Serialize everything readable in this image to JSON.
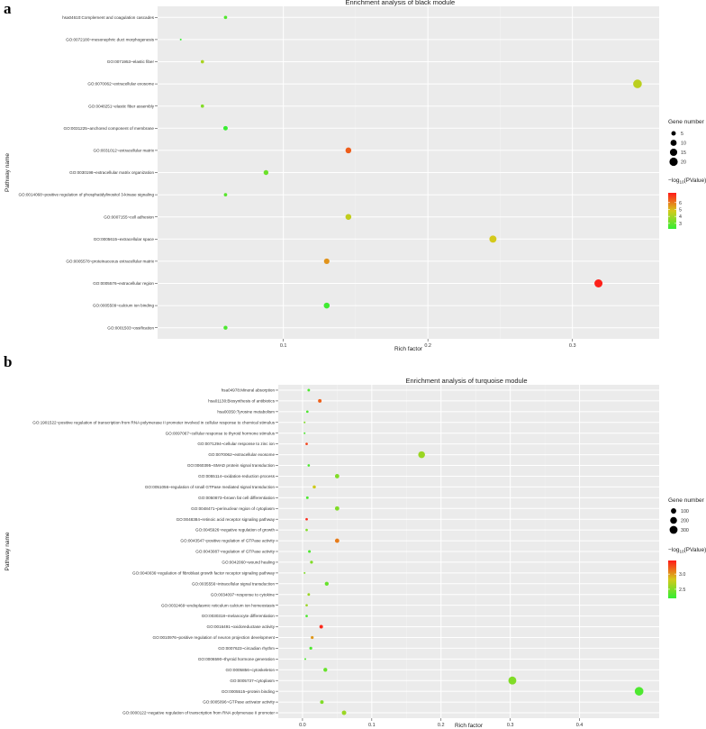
{
  "chart_data": [
    {
      "type": "scatter",
      "panel_label": "a",
      "title": "Enrichment analysis of black module",
      "xlabel": "Rich factor",
      "ylabel": "Pathway name",
      "xlim": [
        0.013,
        0.36
      ],
      "xticks": [
        0.1,
        0.2,
        0.3
      ],
      "xtick_labels": [
        "0.1",
        "0.2",
        "0.3"
      ],
      "grid": true,
      "legend_position": "right",
      "size_legend": {
        "title": "Gene number",
        "values": [
          5,
          10,
          15,
          20
        ],
        "labels": [
          "5",
          "10",
          "15",
          "20"
        ]
      },
      "color_legend": {
        "title_prefix": "−log",
        "title_sub": "10",
        "title_suffix": "(PValue)",
        "min": 2.2,
        "max": 7.4,
        "ticks": [
          3,
          4,
          5,
          6
        ],
        "tick_labels": [
          "3",
          "4",
          "5",
          "6"
        ],
        "low_color": "#33ee33",
        "high_color": "#ff1a1a"
      },
      "points": [
        {
          "label": "hsa04610:Complement and coagulation cascades",
          "x": 0.06,
          "size": 3,
          "logp": 2.7
        },
        {
          "label": "GO:0072180~mesonephric duct morphogenesis",
          "x": 0.029,
          "size": 2,
          "logp": 2.3
        },
        {
          "label": "GO:0071953~elastic fiber",
          "x": 0.044,
          "size": 3,
          "logp": 4.1
        },
        {
          "label": "GO:0070062~extracellular exosome",
          "x": 0.345,
          "size": 22,
          "logp": 4.4
        },
        {
          "label": "GO:0048251~elastic fiber assembly",
          "x": 0.044,
          "size": 3,
          "logp": 3.5
        },
        {
          "label": "GO:0031225~anchored component of membrane",
          "x": 0.06,
          "size": 5,
          "logp": 2.3
        },
        {
          "label": "GO:0031012~extracellular matrix",
          "x": 0.145,
          "size": 9,
          "logp": 6.4
        },
        {
          "label": "GO:0030198~extracellular matrix organization",
          "x": 0.088,
          "size": 6,
          "logp": 3.1
        },
        {
          "label": "GO:0014068~positive regulation of phosphatidylinositol 3-kinase signaling",
          "x": 0.06,
          "size": 3,
          "logp": 2.8
        },
        {
          "label": "GO:0007155~cell adhesion",
          "x": 0.145,
          "size": 9,
          "logp": 4.5
        },
        {
          "label": "GO:0005615~extracellular space",
          "x": 0.245,
          "size": 14,
          "logp": 4.8
        },
        {
          "label": "GO:0005578~proteinaceous extracellular matrix",
          "x": 0.13,
          "size": 8,
          "logp": 5.6
        },
        {
          "label": "GO:0005576~extracellular region",
          "x": 0.318,
          "size": 19,
          "logp": 7.3
        },
        {
          "label": "GO:0005509~calcium ion binding",
          "x": 0.13,
          "size": 9,
          "logp": 2.4
        },
        {
          "label": "GO:0001503~ossification",
          "x": 0.06,
          "size": 4,
          "logp": 2.6
        }
      ]
    },
    {
      "type": "scatter",
      "panel_label": "b",
      "title": "Enrichment analysis of turquoise module",
      "xlabel": "Rich factor",
      "ylabel": "Pathway name",
      "xlim": [
        -0.035,
        0.515
      ],
      "xticks": [
        0.0,
        0.1,
        0.2,
        0.3,
        0.4
      ],
      "xtick_labels": [
        "0.0",
        "0.1",
        "0.2",
        "0.3",
        "0.4"
      ],
      "grid": true,
      "legend_position": "right",
      "size_legend": {
        "title": "Gene number",
        "values": [
          100,
          200,
          300
        ],
        "labels": [
          "100",
          "200",
          "300"
        ]
      },
      "color_legend": {
        "title_prefix": "−log",
        "title_sub": "10",
        "title_suffix": "(PValue)",
        "min": 2.2,
        "max": 3.45,
        "ticks": [
          2.5,
          3.0
        ],
        "tick_labels": [
          "2.5",
          "3.0"
        ],
        "low_color": "#33ee33",
        "high_color": "#ff1a1a"
      },
      "points": [
        {
          "label": "hsa04978:Mineral absorption",
          "x": 0.009,
          "size": 10,
          "logp": 2.3
        },
        {
          "label": "hsa01130:Biosynthesis of antibiotics",
          "x": 0.025,
          "size": 30,
          "logp": 3.2
        },
        {
          "label": "hsa00350:Tyrosine metabolism",
          "x": 0.007,
          "size": 8,
          "logp": 2.3
        },
        {
          "label": "GO:1901522~positive regulation of transcription from RNA polymerase II promoter involved in cellular response to chemical stimulus",
          "x": 0.003,
          "size": 5,
          "logp": 2.5
        },
        {
          "label": "GO:0097067~cellular response to thyroid hormone stimulus",
          "x": 0.003,
          "size": 5,
          "logp": 2.3
        },
        {
          "label": "GO:0071294~cellular response to zinc ion",
          "x": 0.006,
          "size": 8,
          "logp": 3.3
        },
        {
          "label": "GO:0070062~extracellular exosome",
          "x": 0.172,
          "size": 195,
          "logp": 2.6
        },
        {
          "label": "GO:0060395~SMAD protein signal transduction",
          "x": 0.009,
          "size": 8,
          "logp": 2.3
        },
        {
          "label": "GO:0055114~oxidation-reduction process",
          "x": 0.05,
          "size": 55,
          "logp": 2.5
        },
        {
          "label": "GO:0051056~regulation of small GTPase mediated signal transduction",
          "x": 0.017,
          "size": 20,
          "logp": 2.8
        },
        {
          "label": "GO:0050873~brown fat cell differentiation",
          "x": 0.007,
          "size": 10,
          "logp": 2.3
        },
        {
          "label": "GO:0048471~perinuclear region of cytoplasm",
          "x": 0.05,
          "size": 55,
          "logp": 2.5
        },
        {
          "label": "GO:0048384~retinoic acid receptor signaling pathway",
          "x": 0.006,
          "size": 8,
          "logp": 3.4
        },
        {
          "label": "GO:0045926~negative regulation of growth",
          "x": 0.006,
          "size": 8,
          "logp": 2.5
        },
        {
          "label": "GO:0043547~positive regulation of GTPase activity",
          "x": 0.05,
          "size": 55,
          "logp": 3.1
        },
        {
          "label": "GO:0043087~regulation of GTPase activity",
          "x": 0.01,
          "size": 12,
          "logp": 2.3
        },
        {
          "label": "GO:0042060~wound healing",
          "x": 0.013,
          "size": 15,
          "logp": 2.5
        },
        {
          "label": "GO:0040036~regulation of fibroblast growth factor receptor signaling pathway",
          "x": 0.003,
          "size": 5,
          "logp": 2.5
        },
        {
          "label": "GO:0035556~intracellular signal transduction",
          "x": 0.035,
          "size": 40,
          "logp": 2.4
        },
        {
          "label": "GO:0034097~response to cytokine",
          "x": 0.009,
          "size": 10,
          "logp": 2.6
        },
        {
          "label": "GO:0032469~endoplasmic reticulum calcium ion homeostasis",
          "x": 0.006,
          "size": 8,
          "logp": 2.6
        },
        {
          "label": "GO:0030318~melanocyte differentiation",
          "x": 0.006,
          "size": 8,
          "logp": 2.3
        },
        {
          "label": "GO:0016491~oxidoreductase activity",
          "x": 0.027,
          "size": 30,
          "logp": 3.4
        },
        {
          "label": "GO:0010976~positive regulation of neuron projection development",
          "x": 0.014,
          "size": 15,
          "logp": 3.0
        },
        {
          "label": "GO:0007623~circadian rhythm",
          "x": 0.012,
          "size": 15,
          "logp": 2.3
        },
        {
          "label": "GO:0006590~thyroid hormone generation",
          "x": 0.004,
          "size": 5,
          "logp": 2.3
        },
        {
          "label": "GO:0005856~cytoskeleton",
          "x": 0.033,
          "size": 40,
          "logp": 2.4
        },
        {
          "label": "GO:0005737~cytoplasm",
          "x": 0.303,
          "size": 300,
          "logp": 2.5
        },
        {
          "label": "GO:0005515~protein binding",
          "x": 0.486,
          "size": 370,
          "logp": 2.3
        },
        {
          "label": "GO:0005096~GTPase activator activity",
          "x": 0.028,
          "size": 30,
          "logp": 2.5
        },
        {
          "label": "GO:0000122~negative regulation of transcription from RNA polymerase II promoter",
          "x": 0.06,
          "size": 60,
          "logp": 2.6
        }
      ]
    }
  ]
}
